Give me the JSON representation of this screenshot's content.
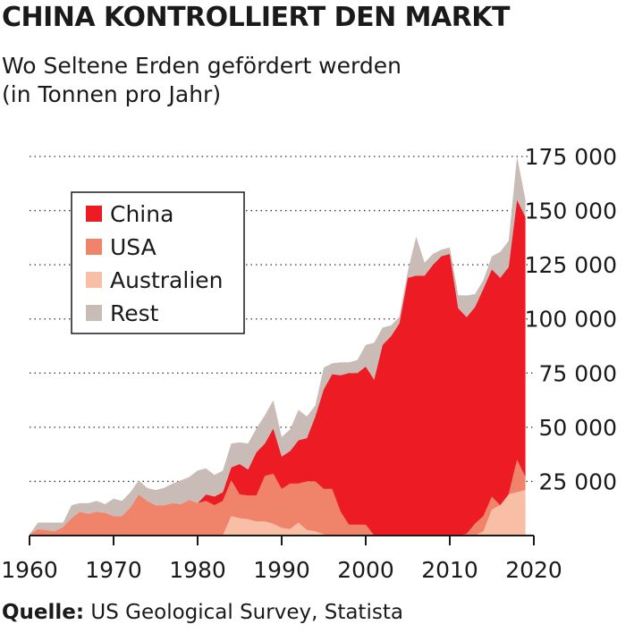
{
  "title": "CHINA KONTROLLIERT DEN MARKT",
  "subtitle_line1": "Wo Seltene Erden gefördert werden",
  "subtitle_line2": "(in Tonnen pro Jahr)",
  "source_label": "Quelle:",
  "source_text": " US Geological Survey, Statista",
  "colors": {
    "China": "#ed1c24",
    "USA": "#f0846a",
    "Australien": "#f9bfa6",
    "Rest": "#c9bcb6"
  },
  "chart_data": {
    "type": "area",
    "stacked": true,
    "x_tick_labels": [
      "1960",
      "1970",
      "1980",
      "1990",
      "2000",
      "2010",
      "2020"
    ],
    "y_tick_labels": [
      "25 000",
      "50 000",
      "75 000",
      "100 000",
      "125 000",
      "150 000",
      "175 000"
    ],
    "xlim": [
      1960,
      2020
    ],
    "ylim": [
      0,
      175000
    ],
    "grid": "horizontal dotted",
    "legend_position": "top-left",
    "x": [
      1960,
      1961,
      1962,
      1963,
      1964,
      1965,
      1966,
      1967,
      1968,
      1969,
      1970,
      1971,
      1972,
      1973,
      1974,
      1975,
      1976,
      1977,
      1978,
      1979,
      1980,
      1981,
      1982,
      1983,
      1984,
      1985,
      1986,
      1987,
      1988,
      1989,
      1990,
      1991,
      1992,
      1993,
      1994,
      1995,
      1996,
      1997,
      1998,
      1999,
      2000,
      2001,
      2002,
      2003,
      2004,
      2005,
      2006,
      2007,
      2008,
      2009,
      2010,
      2011,
      2012,
      2013,
      2014,
      2015,
      2016,
      2017,
      2018,
      2019
    ],
    "series": [
      {
        "name": "Australien",
        "values": [
          0,
          0,
          0,
          0,
          0,
          0,
          0,
          0,
          0,
          0,
          0,
          0,
          0,
          0,
          0,
          0,
          0,
          0,
          0,
          0,
          0,
          0,
          0,
          0,
          9000,
          8000,
          7500,
          6500,
          6500,
          5500,
          3500,
          3000,
          6000,
          2500,
          2000,
          500,
          0,
          0,
          0,
          0,
          0,
          0,
          0,
          0,
          0,
          0,
          0,
          0,
          0,
          0,
          0,
          0,
          0,
          0,
          2000,
          12000,
          14000,
          19000,
          20000,
          21000
        ]
      },
      {
        "name": "USA",
        "values": [
          500,
          3000,
          2500,
          2000,
          4000,
          8000,
          11000,
          10000,
          11000,
          10500,
          9000,
          9000,
          13000,
          19000,
          16000,
          14000,
          14000,
          15000,
          14500,
          16500,
          15000,
          16000,
          14000,
          16000,
          16500,
          11000,
          11000,
          12000,
          21000,
          23000,
          18000,
          21000,
          18000,
          22500,
          23000,
          21000,
          21500,
          11000,
          5000,
          5000,
          5000,
          0,
          0,
          0,
          0,
          0,
          0,
          0,
          0,
          0,
          0,
          0,
          800,
          5500,
          7000,
          5900,
          0,
          0,
          15000,
          6000
        ]
      },
      {
        "name": "China",
        "values": [
          0,
          0,
          0,
          0,
          0,
          0,
          0,
          0,
          0,
          0,
          0,
          0,
          0,
          0,
          0,
          0,
          0,
          0,
          0,
          0,
          0,
          3000,
          4000,
          4000,
          6000,
          14000,
          12000,
          20000,
          15000,
          21000,
          15000,
          15000,
          20000,
          20000,
          30000,
          46000,
          53000,
          63000,
          70000,
          70000,
          73000,
          72000,
          88000,
          92000,
          98000,
          119000,
          120000,
          120000,
          125000,
          129000,
          130000,
          105000,
          100000,
          100000,
          105000,
          105000,
          105000,
          105000,
          120000,
          120000
        ]
      },
      {
        "name": "Rest",
        "values": [
          0,
          3000,
          3500,
          4000,
          2000,
          6000,
          4000,
          5000,
          5000,
          4000,
          8000,
          7000,
          7000,
          6500,
          6000,
          7000,
          8000,
          9000,
          11000,
          10500,
          15000,
          12000,
          10000,
          10000,
          11000,
          10000,
          12000,
          11000,
          13000,
          13000,
          9000,
          10000,
          14000,
          10000,
          5000,
          10000,
          5000,
          6000,
          5000,
          6000,
          10000,
          17000,
          8000,
          5000,
          3000,
          3000,
          18000,
          6000,
          5000,
          3000,
          3000,
          6000,
          10000,
          6000,
          4000,
          6000,
          12000,
          12000,
          20000,
          8000
        ]
      }
    ]
  }
}
